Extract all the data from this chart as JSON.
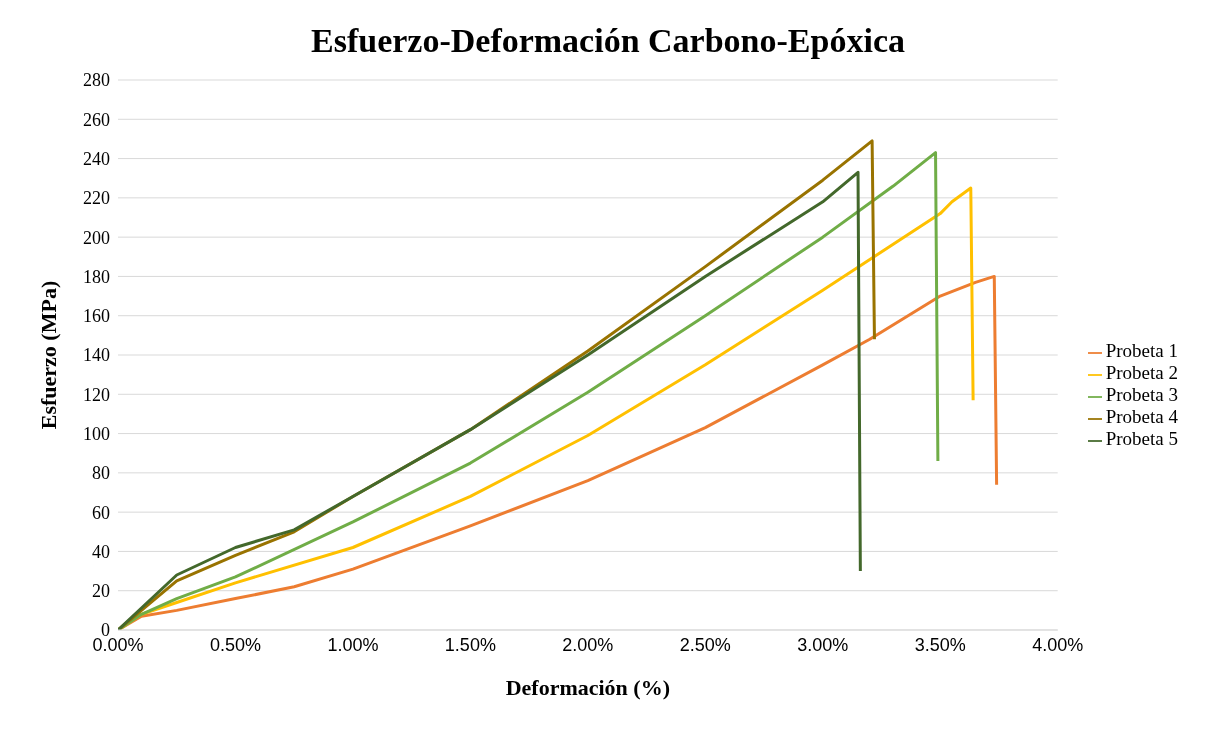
{
  "chart_data": {
    "type": "line",
    "title": "Esfuerzo-Deformación Carbono-Epóxica",
    "xlabel": "Deformación (%)",
    "ylabel": "Esfuerzo (MPa)",
    "xlim": [
      0,
      4
    ],
    "xticks": [
      {
        "value": 0,
        "label": "0.00%"
      },
      {
        "value": 0.5,
        "label": "0.50%"
      },
      {
        "value": 1,
        "label": "1.00%"
      },
      {
        "value": 1.5,
        "label": "1.50%"
      },
      {
        "value": 2,
        "label": "2.00%"
      },
      {
        "value": 2.5,
        "label": "2.50%"
      },
      {
        "value": 3,
        "label": "3.00%"
      },
      {
        "value": 3.5,
        "label": "3.50%"
      },
      {
        "value": 4,
        "label": "4.00%"
      }
    ],
    "ylim": [
      0,
      280
    ],
    "yticks": [
      0,
      20,
      40,
      60,
      80,
      100,
      120,
      140,
      160,
      180,
      200,
      220,
      240,
      260,
      280
    ],
    "grid": "y",
    "legend": "right",
    "marker": "none",
    "line_style": "solid",
    "series": [
      {
        "name": "Probeta 1",
        "color": "#ed7d31",
        "x": [
          0,
          0.1,
          0.25,
          0.5,
          0.75,
          1,
          1.5,
          2,
          2.5,
          3,
          3.2,
          3.5,
          3.65,
          3.73,
          3.74
        ],
        "values": [
          0,
          7,
          10,
          16,
          22,
          31,
          53,
          76,
          103,
          135,
          148,
          170,
          177,
          180,
          74
        ]
      },
      {
        "name": "Probeta 2",
        "color": "#ffc000",
        "x": [
          0,
          0.1,
          0.25,
          0.5,
          1,
          1.5,
          2,
          2.5,
          3,
          3.5,
          3.55,
          3.63,
          3.64
        ],
        "values": [
          0,
          8,
          14,
          24,
          42,
          68,
          99,
          135,
          173,
          212,
          218,
          225,
          117
        ]
      },
      {
        "name": "Probeta 3",
        "color": "#70ad47",
        "x": [
          0,
          0.1,
          0.25,
          0.5,
          1,
          1.5,
          2,
          2.5,
          3,
          3.3,
          3.48,
          3.49
        ],
        "values": [
          0,
          8,
          16,
          27,
          55,
          85,
          121,
          160,
          200,
          226,
          243,
          86
        ]
      },
      {
        "name": "Probeta 4",
        "color": "#997300",
        "x": [
          0,
          0.25,
          0.5,
          0.75,
          1,
          1.5,
          2,
          2.5,
          3,
          3.21,
          3.22
        ],
        "values": [
          0,
          25,
          38,
          50,
          68,
          102,
          142,
          185,
          229,
          249,
          148
        ]
      },
      {
        "name": "Probeta 5",
        "color": "#43682b",
        "x": [
          0,
          0.25,
          0.5,
          0.75,
          1,
          1.5,
          2,
          2.5,
          3,
          3.15,
          3.16
        ],
        "values": [
          0,
          28,
          42,
          51,
          68,
          102,
          140,
          180,
          218,
          233,
          30
        ]
      }
    ]
  }
}
